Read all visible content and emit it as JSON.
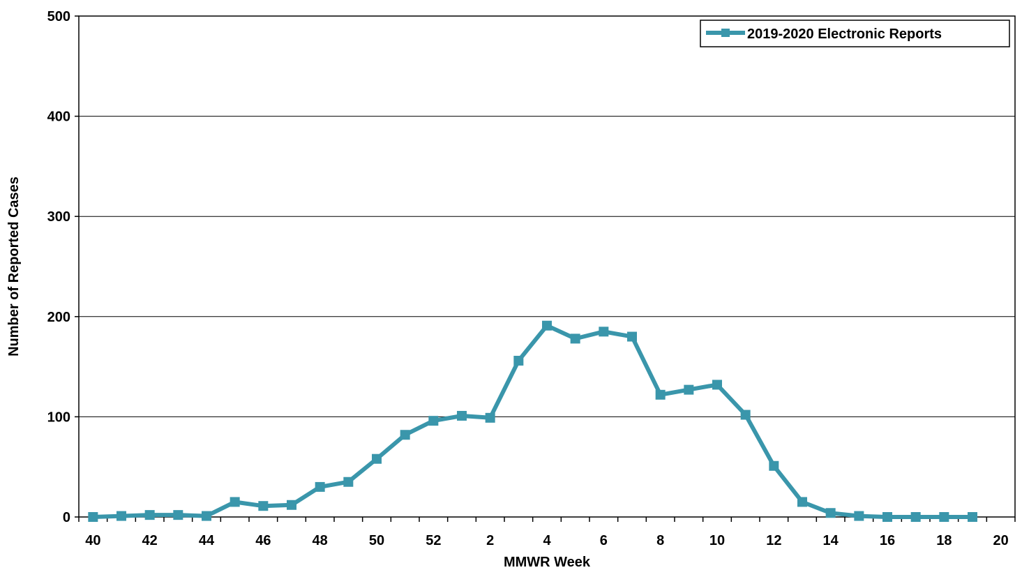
{
  "chart_data": {
    "type": "line",
    "title": "",
    "xlabel": "MMWR Week",
    "ylabel": "Number of Reported Cases",
    "ylim": [
      0,
      500
    ],
    "yticks": [
      "0",
      "100",
      "200",
      "300",
      "400",
      "500"
    ],
    "xtick_labels": [
      "40",
      "42",
      "44",
      "46",
      "48",
      "50",
      "52",
      "2",
      "4",
      "6",
      "8",
      "10",
      "12",
      "14",
      "16",
      "18",
      "20"
    ],
    "grid": "horizontal",
    "legend_position": "top-right",
    "series": [
      {
        "name": "2019-2020 Electronic Reports",
        "color": "#3a96ab",
        "x": [
          "40",
          "41",
          "42",
          "43",
          "44",
          "45",
          "46",
          "47",
          "48",
          "49",
          "50",
          "51",
          "52",
          "1",
          "2",
          "3",
          "4",
          "5",
          "6",
          "7",
          "8",
          "9",
          "10",
          "11",
          "12",
          "13",
          "14",
          "15",
          "16",
          "17",
          "18",
          "19"
        ],
        "values": [
          0,
          1,
          2,
          2,
          1,
          15,
          11,
          12,
          30,
          35,
          58,
          82,
          96,
          101,
          99,
          156,
          191,
          178,
          185,
          180,
          122,
          127,
          132,
          102,
          51,
          15,
          4,
          1,
          0,
          0,
          0,
          0
        ]
      }
    ]
  }
}
